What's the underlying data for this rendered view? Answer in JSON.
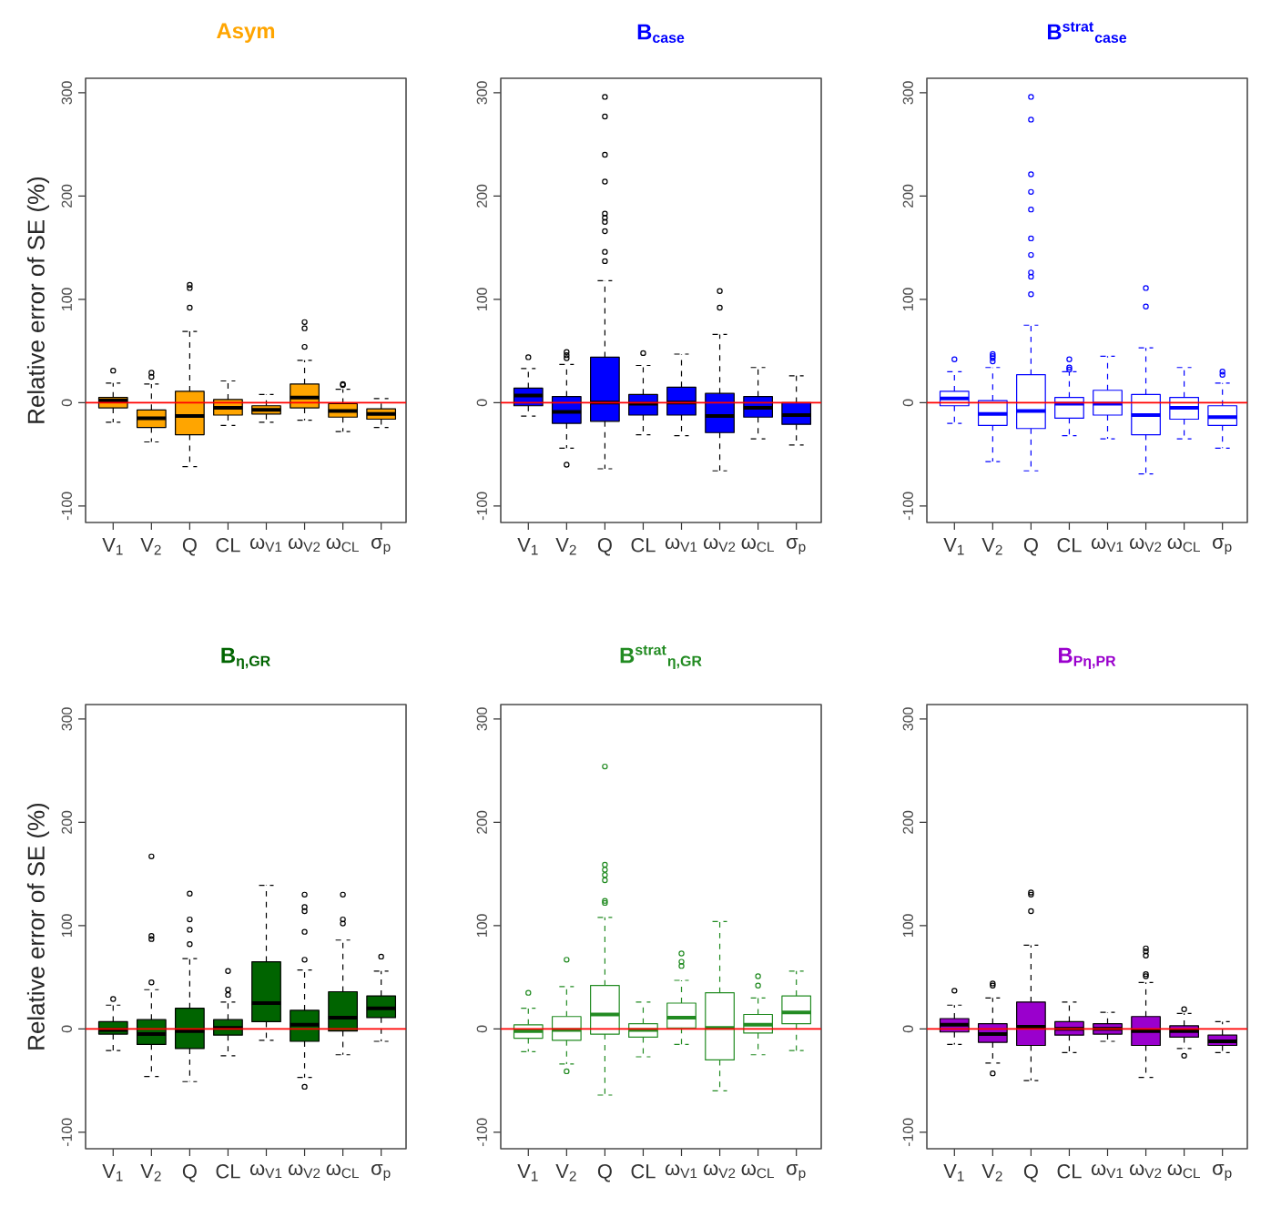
{
  "chart_data": [
    {
      "type": "box",
      "title": "Asym",
      "ylabel": "Relative error of SE (%)",
      "categories": [
        "V$_{1}$",
        "V$_{2}$",
        "Q",
        "CL",
        "ω$_{V1}$",
        "ω$_{V2}$",
        "ω$_{CL}$",
        "σ$_{p}$"
      ],
      "color": "#000000",
      "colors": [
        "#ffa500",
        "#ffa500",
        "#ffa500",
        "#ffa500",
        "#ffa500",
        "#ffa500",
        "#ffa500",
        "#ffa500"
      ],
      "ylim": [
        -116,
        314
      ],
      "yticks": [
        -100,
        0,
        100,
        200,
        300
      ],
      "ref_lines": [
        {
          "axis": "y",
          "value": 0,
          "color": "#ff0000"
        }
      ],
      "boxes": [
        {
          "low": -19,
          "q1": -5,
          "median": 2,
          "q3": 5,
          "high": 19,
          "outliers": [
            31
          ]
        },
        {
          "low": -38,
          "q1": -24,
          "median": -15,
          "q3": -7,
          "high": 18,
          "outliers": [
            29,
            25
          ]
        },
        {
          "low": -62,
          "q1": -31,
          "median": -13,
          "q3": 11,
          "high": 69,
          "outliers": [
            114,
            111,
            92
          ]
        },
        {
          "low": -22,
          "q1": -12,
          "median": -5,
          "q3": 3,
          "high": 21
        },
        {
          "low": -19,
          "q1": -11,
          "median": -7,
          "q3": -3,
          "high": 8
        },
        {
          "low": -17,
          "q1": -5,
          "median": 5,
          "q3": 18,
          "high": 41,
          "outliers": [
            78,
            72,
            54
          ]
        },
        {
          "low": -28,
          "q1": -14,
          "median": -8,
          "q3": -1,
          "high": 13,
          "outliers": [
            18,
            17
          ]
        },
        {
          "low": -24,
          "q1": -16,
          "median": -11,
          "q3": -6,
          "high": 4
        }
      ]
    },
    {
      "type": "box",
      "title": "B$_{case}$",
      "categories": [
        "V$_{1}$",
        "V$_{2}$",
        "Q",
        "CL",
        "ω$_{V1}$",
        "ω$_{V2}$",
        "ω$_{CL}$",
        "σ$_{p}$"
      ],
      "color": "#000000",
      "colors": [
        "#0000ff",
        "#0000ff",
        "#0000ff",
        "#0000ff",
        "#0000ff",
        "#0000ff",
        "#0000ff",
        "#0000ff"
      ],
      "ylim": [
        -116,
        314
      ],
      "yticks": [
        -100,
        0,
        100,
        200,
        300
      ],
      "ref_lines": [
        {
          "axis": "y",
          "value": 0,
          "color": "#ff0000"
        }
      ],
      "boxes": [
        {
          "low": -13,
          "q1": -3,
          "median": 7,
          "q3": 14,
          "high": 33,
          "outliers": [
            44
          ]
        },
        {
          "low": -44,
          "q1": -20,
          "median": -9,
          "q3": 6,
          "high": 37,
          "outliers": [
            49,
            46,
            43,
            -60
          ]
        },
        {
          "low": -64,
          "q1": -18,
          "median": 0,
          "q3": 44,
          "high": 118,
          "outliers": [
            296,
            277,
            240,
            214,
            183,
            179,
            175,
            166,
            146,
            137
          ]
        },
        {
          "low": -31,
          "q1": -12,
          "median": -1,
          "q3": 8,
          "high": 36,
          "outliers": [
            48
          ]
        },
        {
          "low": -32,
          "q1": -12,
          "median": 0,
          "q3": 15,
          "high": 47
        },
        {
          "low": -66,
          "q1": -29,
          "median": -13,
          "q3": 9,
          "high": 66,
          "outliers": [
            108,
            92
          ]
        },
        {
          "low": -35,
          "q1": -14,
          "median": -5,
          "q3": 6,
          "high": 34
        },
        {
          "low": -41,
          "q1": -21,
          "median": -12,
          "q3": 0,
          "high": 26
        }
      ]
    },
    {
      "type": "box",
      "title": "B$^{strat}$$_{case}$",
      "categories": [
        "V$_{1}$",
        "V$_{2}$",
        "Q",
        "CL",
        "ω$_{V1}$",
        "ω$_{V2}$",
        "ω$_{CL}$",
        "σ$_{p}$"
      ],
      "color": "#0000ff",
      "ylim": [
        -116,
        314
      ],
      "yticks": [
        -100,
        0,
        100,
        200,
        300
      ],
      "ref_lines": [
        {
          "axis": "y",
          "value": 0,
          "color": "#ff0000"
        }
      ],
      "boxes": [
        {
          "low": -20,
          "q1": -3,
          "median": 4,
          "q3": 11,
          "high": 30,
          "outliers": [
            42
          ]
        },
        {
          "low": -57,
          "q1": -22,
          "median": -11,
          "q3": 2,
          "high": 34,
          "outliers": [
            47,
            45,
            43,
            40
          ]
        },
        {
          "low": -66,
          "q1": -25,
          "median": -8,
          "q3": 27,
          "high": 75,
          "outliers": [
            296,
            274,
            221,
            204,
            187,
            159,
            143,
            126,
            122,
            105
          ]
        },
        {
          "low": -32,
          "q1": -15,
          "median": -1,
          "q3": 5,
          "high": 30,
          "outliers": [
            42,
            34,
            32
          ]
        },
        {
          "low": -35,
          "q1": -12,
          "median": -1,
          "q3": 12,
          "high": 45
        },
        {
          "low": -69,
          "q1": -31,
          "median": -12,
          "q3": 8,
          "high": 53,
          "outliers": [
            111,
            93
          ]
        },
        {
          "low": -35,
          "q1": -16,
          "median": -5,
          "q3": 5,
          "high": 34
        },
        {
          "low": -44,
          "q1": -22,
          "median": -14,
          "q3": -3,
          "high": 19,
          "outliers": [
            30,
            27
          ]
        }
      ]
    },
    {
      "type": "box",
      "title": "B$_{η,GR}$",
      "ylabel": "Relative error of SE (%)",
      "categories": [
        "V$_{1}$",
        "V$_{2}$",
        "Q",
        "CL",
        "ω$_{V1}$",
        "ω$_{V2}$",
        "ω$_{CL}$",
        "σ$_{p}$"
      ],
      "color": "#000000",
      "colors": [
        "#006400",
        "#006400",
        "#006400",
        "#006400",
        "#006400",
        "#006400",
        "#006400",
        "#006400"
      ],
      "ylim": [
        -116,
        314
      ],
      "yticks": [
        -100,
        0,
        100,
        200,
        300
      ],
      "ref_lines": [
        {
          "axis": "y",
          "value": 0,
          "color": "#ff0000"
        }
      ],
      "boxes": [
        {
          "low": -21,
          "q1": -5,
          "median": -1,
          "q3": 7,
          "high": 23,
          "outliers": [
            29
          ]
        },
        {
          "low": -46,
          "q1": -15,
          "median": -5,
          "q3": 9,
          "high": 38,
          "outliers": [
            167,
            90,
            87,
            45
          ]
        },
        {
          "low": -51,
          "q1": -19,
          "median": -2,
          "q3": 20,
          "high": 68,
          "outliers": [
            131,
            106,
            96,
            82
          ]
        },
        {
          "low": -26,
          "q1": -6,
          "median": 1,
          "q3": 9,
          "high": 26,
          "outliers": [
            56,
            38,
            33
          ]
        },
        {
          "low": -11,
          "q1": 7,
          "median": 25,
          "q3": 65,
          "high": 139
        },
        {
          "low": -47,
          "q1": -12,
          "median": 4,
          "q3": 18,
          "high": 57,
          "outliers": [
            130,
            118,
            114,
            94,
            67,
            -56
          ]
        },
        {
          "low": -25,
          "q1": -2,
          "median": 11,
          "q3": 36,
          "high": 86,
          "outliers": [
            130,
            106,
            102
          ]
        },
        {
          "low": -12,
          "q1": 11,
          "median": 20,
          "q3": 32,
          "high": 56,
          "outliers": [
            70
          ]
        }
      ]
    },
    {
      "type": "box",
      "title": "B$^{strat}$$_{η,GR}$",
      "categories": [
        "V$_{1}$",
        "V$_{2}$",
        "Q",
        "CL",
        "ω$_{V1}$",
        "ω$_{V2}$",
        "ω$_{CL}$",
        "σ$_{p}$"
      ],
      "color": "#228b22",
      "ylim": [
        -116,
        314
      ],
      "yticks": [
        -100,
        0,
        100,
        200,
        300
      ],
      "ref_lines": [
        {
          "axis": "y",
          "value": 0,
          "color": "#ff0000"
        }
      ],
      "boxes": [
        {
          "low": -22,
          "q1": -9,
          "median": -2,
          "q3": 4,
          "high": 20,
          "outliers": [
            35
          ]
        },
        {
          "low": -34,
          "q1": -11,
          "median": -1,
          "q3": 12,
          "high": 41,
          "outliers": [
            67,
            -41
          ]
        },
        {
          "low": -64,
          "q1": -5,
          "median": 14,
          "q3": 42,
          "high": 108,
          "outliers": [
            254,
            159,
            154,
            149,
            144,
            124,
            122
          ]
        },
        {
          "low": -27,
          "q1": -8,
          "median": -1,
          "q3": 5,
          "high": 26
        },
        {
          "low": -15,
          "q1": 1,
          "median": 11,
          "q3": 25,
          "high": 47,
          "outliers": [
            73,
            65,
            61
          ]
        },
        {
          "low": -60,
          "q1": -30,
          "median": 1,
          "q3": 35,
          "high": 104
        },
        {
          "low": -25,
          "q1": -4,
          "median": 4,
          "q3": 14,
          "high": 30,
          "outliers": [
            51,
            42
          ]
        },
        {
          "low": -21,
          "q1": 5,
          "median": 16,
          "q3": 32,
          "high": 56
        }
      ]
    },
    {
      "type": "box",
      "title": "B$_{Pη,PR}$",
      "categories": [
        "V$_{1}$",
        "V$_{2}$",
        "Q",
        "CL",
        "ω$_{V1}$",
        "ω$_{V2}$",
        "ω$_{CL}$",
        "σ$_{p}$"
      ],
      "color": "#000000",
      "colors": [
        "#9a00cd",
        "#9a00cd",
        "#9a00cd",
        "#9a00cd",
        "#9a00cd",
        "#9a00cd",
        "#9a00cd",
        "#9a00cd"
      ],
      "ylim": [
        -116,
        314
      ],
      "yticks": [
        -100,
        0,
        100,
        200,
        300
      ],
      "ref_lines": [
        {
          "axis": "y",
          "value": 0,
          "color": "#ff0000"
        }
      ],
      "boxes": [
        {
          "low": -15,
          "q1": -3,
          "median": 4,
          "q3": 10,
          "high": 23,
          "outliers": [
            37
          ]
        },
        {
          "low": -33,
          "q1": -13,
          "median": -5,
          "q3": 5,
          "high": 30,
          "outliers": [
            44,
            42,
            -43
          ]
        },
        {
          "low": -50,
          "q1": -16,
          "median": 2,
          "q3": 26,
          "high": 81,
          "outliers": [
            132,
            130,
            114
          ]
        },
        {
          "low": -23,
          "q1": -6,
          "median": 0,
          "q3": 7,
          "high": 26
        },
        {
          "low": -12,
          "q1": -5,
          "median": 0,
          "q3": 5,
          "high": 16
        },
        {
          "low": -47,
          "q1": -16,
          "median": -2,
          "q3": 12,
          "high": 45,
          "outliers": [
            78,
            75,
            71,
            53,
            51
          ]
        },
        {
          "low": -19,
          "q1": -8,
          "median": -2,
          "q3": 3,
          "high": 15,
          "outliers": [
            19,
            -26
          ]
        },
        {
          "low": -23,
          "q1": -16,
          "median": -12,
          "q3": -6,
          "high": 7
        }
      ]
    }
  ]
}
